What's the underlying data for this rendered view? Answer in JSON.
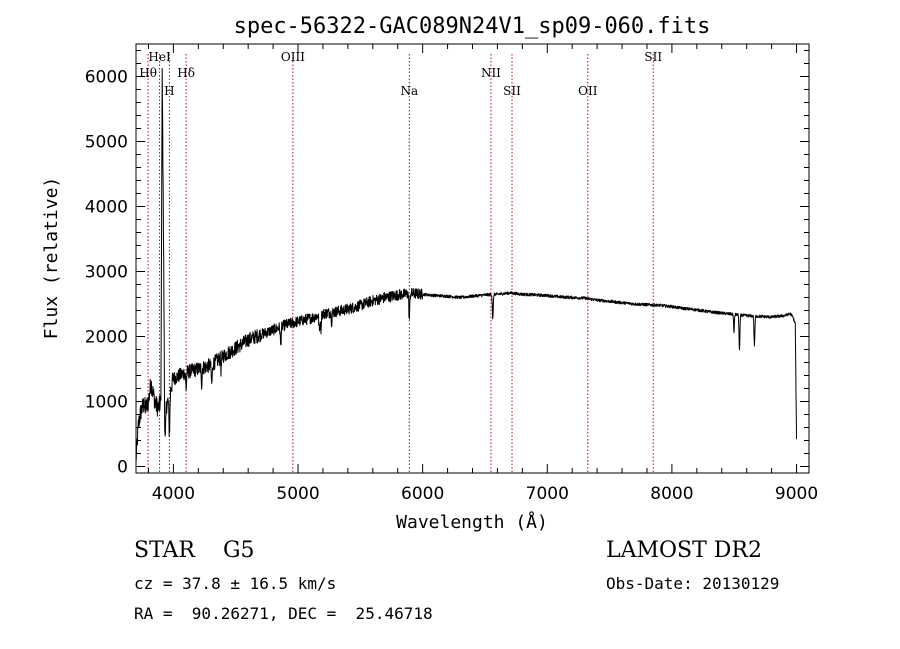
{
  "chart_data": {
    "type": "line",
    "title": "spec-56322-GAC089N24V1_sp09-060.fits",
    "xlabel": "Wavelength (Å)",
    "ylabel": "Flux (relative)",
    "xlim": [
      3700,
      9100
    ],
    "ylim": [
      -100,
      6500
    ],
    "x_ticks": [
      4000,
      5000,
      6000,
      7000,
      8000,
      9000
    ],
    "y_ticks": [
      0,
      1000,
      2000,
      3000,
      4000,
      5000,
      6000
    ],
    "grid": false,
    "line_color": "#000000",
    "marker_color": "#b01010",
    "continuum": {
      "x": [
        3700,
        3720,
        3740,
        3760,
        3780,
        3800,
        3820,
        3840,
        3860,
        3880,
        3900,
        3910,
        3930,
        3950,
        3970,
        4000,
        4050,
        4100,
        4200,
        4300,
        4400,
        4500,
        4600,
        4700,
        4800,
        4900,
        5000,
        5100,
        5200,
        5300,
        5400,
        5500,
        5600,
        5700,
        5800,
        5850,
        5900,
        5950,
        6000,
        6100,
        6200,
        6300,
        6400,
        6500,
        6600,
        6700,
        6800,
        6900,
        7000,
        7100,
        7200,
        7300,
        7400,
        7500,
        7600,
        7700,
        7800,
        7900,
        8000,
        8100,
        8200,
        8300,
        8400,
        8500,
        8600,
        8700,
        8800,
        8900,
        8950,
        8970,
        8990,
        9000
      ],
      "y": [
        100,
        650,
        850,
        950,
        900,
        1000,
        1300,
        1100,
        950,
        900,
        1000,
        6200,
        1100,
        950,
        1150,
        1350,
        1400,
        1450,
        1500,
        1560,
        1700,
        1820,
        1950,
        2030,
        2100,
        2180,
        2230,
        2280,
        2350,
        2380,
        2420,
        2480,
        2550,
        2600,
        2640,
        2650,
        2660,
        2660,
        2650,
        2630,
        2620,
        2600,
        2620,
        2640,
        2650,
        2670,
        2650,
        2640,
        2630,
        2610,
        2600,
        2590,
        2560,
        2540,
        2520,
        2500,
        2490,
        2480,
        2460,
        2430,
        2410,
        2380,
        2360,
        2340,
        2320,
        2310,
        2300,
        2320,
        2350,
        2300,
        2200,
        400
      ]
    },
    "absorption_dips": [
      {
        "x": 3934,
        "depth": 700,
        "width": 6
      },
      {
        "x": 3968,
        "depth": 600,
        "width": 6
      },
      {
        "x": 4102,
        "depth": 250,
        "width": 5
      },
      {
        "x": 4227,
        "depth": 250,
        "width": 4
      },
      {
        "x": 4308,
        "depth": 300,
        "width": 6
      },
      {
        "x": 4383,
        "depth": 200,
        "width": 4
      },
      {
        "x": 4861,
        "depth": 280,
        "width": 5
      },
      {
        "x": 5172,
        "depth": 250,
        "width": 6
      },
      {
        "x": 5184,
        "depth": 220,
        "width": 4
      },
      {
        "x": 5270,
        "depth": 150,
        "width": 4
      },
      {
        "x": 5893,
        "depth": 400,
        "width": 5
      },
      {
        "x": 6563,
        "depth": 380,
        "width": 5
      },
      {
        "x": 8498,
        "depth": 300,
        "width": 4
      },
      {
        "x": 8542,
        "depth": 550,
        "width": 5
      },
      {
        "x": 8662,
        "depth": 450,
        "width": 5
      }
    ],
    "line_markers": [
      {
        "label": "Hθ",
        "x": 3797,
        "row": 2
      },
      {
        "label": "HeI",
        "x": 3889,
        "row": 1
      },
      {
        "label": "H",
        "x": 3968,
        "row": 3
      },
      {
        "label": "Hδ",
        "x": 4102,
        "row": 2
      },
      {
        "label": "OIII",
        "x": 4959,
        "row": 1
      },
      {
        "label": "Na",
        "x": 5893,
        "row": 3
      },
      {
        "label": "NII",
        "x": 6548,
        "row": 2
      },
      {
        "label": "SII",
        "x": 6717,
        "row": 3
      },
      {
        "label": "OII",
        "x": 7325,
        "row": 3
      },
      {
        "label": "SII",
        "x": 7850,
        "row": 1
      }
    ]
  },
  "info": {
    "class_line": "STAR    G5",
    "cz_line": "cz = 37.8 ± 16.5 km/s",
    "radec_line": "RA =  90.26271, DEC =  25.46718",
    "survey": "LAMOST DR2",
    "obs_date": "Obs-Date: 20130129"
  }
}
